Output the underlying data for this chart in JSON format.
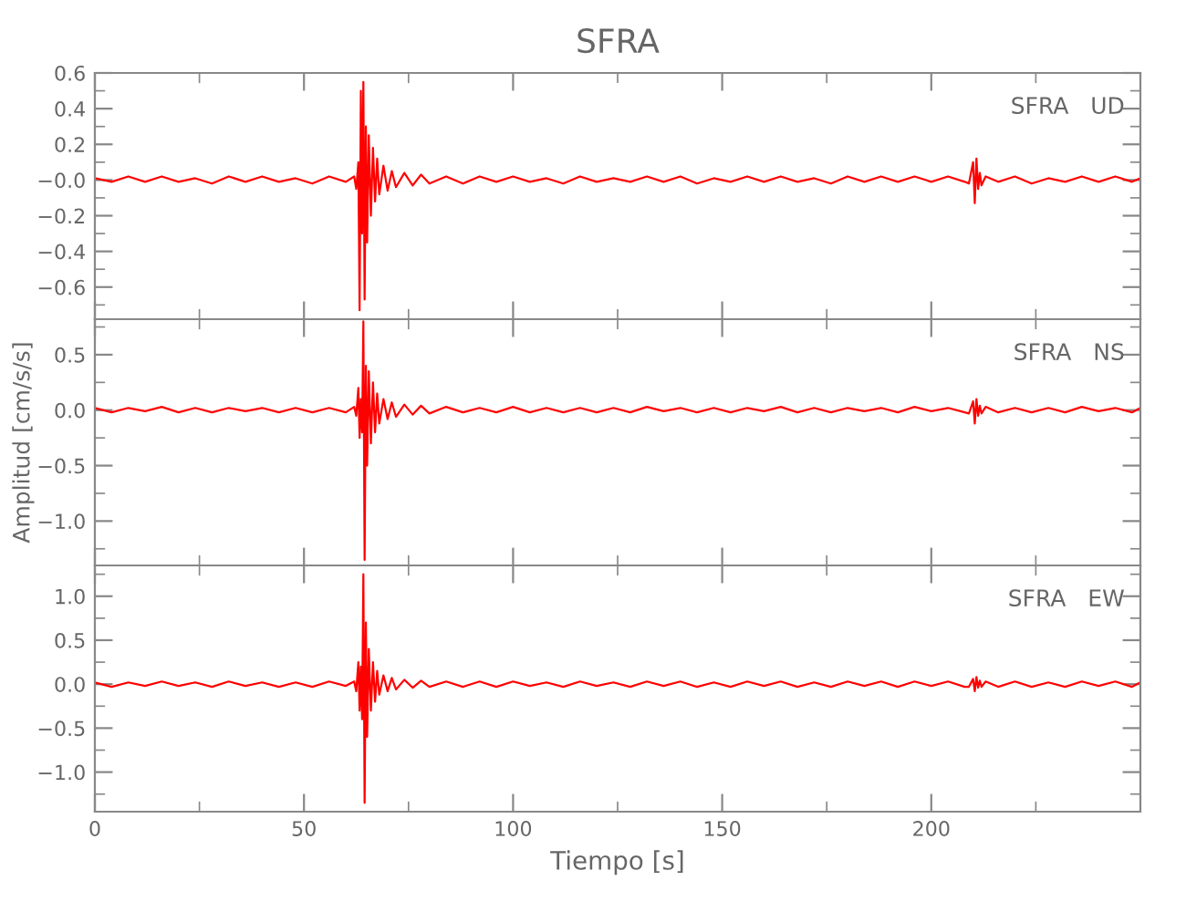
{
  "chart_data": [
    {
      "type": "line",
      "title": "SFRA",
      "annotations": [
        "SFRA   UD"
      ],
      "xlim": [
        0,
        250
      ],
      "xticks": [
        0,
        50,
        100,
        150,
        200
      ],
      "ylim": [
        -0.78,
        0.6
      ],
      "yticks": [
        0.6,
        0.4,
        0.2,
        {
          "value": 0,
          "label": "−0.0"
        },
        -0.2,
        -0.4,
        -0.6
      ],
      "tick_labels": "y",
      "grid": false,
      "legend": false,
      "series": [
        {
          "color": "#ff0000",
          "x": [
            0,
            4,
            8,
            12,
            16,
            20,
            24,
            28,
            32,
            36,
            40,
            44,
            48,
            52,
            56,
            60,
            62,
            62.5,
            63,
            63.3,
            63.6,
            63.9,
            64.2,
            64.5,
            64.8,
            65.1,
            65.5,
            66,
            66.5,
            67,
            67.5,
            68,
            69,
            70,
            71,
            72,
            74,
            76,
            78,
            80,
            84,
            88,
            92,
            96,
            100,
            104,
            108,
            112,
            116,
            120,
            124,
            128,
            132,
            136,
            140,
            144,
            148,
            152,
            156,
            160,
            164,
            168,
            172,
            176,
            180,
            184,
            188,
            192,
            196,
            200,
            204,
            208,
            209,
            210,
            210.4,
            210.8,
            211.2,
            211.6,
            212,
            213,
            216,
            220,
            224,
            228,
            232,
            236,
            240,
            244,
            248,
            250
          ],
          "values": [
            0.01,
            -0.01,
            0.02,
            -0.01,
            0.02,
            -0.01,
            0.01,
            -0.02,
            0.02,
            -0.01,
            0.02,
            -0.01,
            0.01,
            -0.02,
            0.02,
            -0.01,
            0.02,
            -0.05,
            0.1,
            -0.73,
            0.5,
            -0.3,
            0.55,
            -0.67,
            0.3,
            -0.35,
            0.25,
            -0.2,
            0.18,
            -0.12,
            0.12,
            -0.08,
            0.08,
            -0.06,
            0.05,
            -0.04,
            0.04,
            -0.03,
            0.03,
            -0.02,
            0.02,
            -0.02,
            0.02,
            -0.01,
            0.02,
            -0.01,
            0.01,
            -0.02,
            0.02,
            -0.01,
            0.01,
            -0.01,
            0.02,
            -0.01,
            0.02,
            -0.02,
            0.01,
            -0.01,
            0.02,
            -0.01,
            0.02,
            -0.01,
            0.01,
            -0.02,
            0.02,
            -0.01,
            0.02,
            -0.01,
            0.02,
            -0.01,
            0.02,
            -0.01,
            -0.02,
            0.1,
            -0.13,
            0.12,
            -0.05,
            0.04,
            -0.03,
            0.02,
            -0.01,
            0.02,
            -0.02,
            0.01,
            -0.01,
            0.02,
            -0.01,
            0.02,
            -0.01,
            0.01
          ]
        }
      ]
    },
    {
      "type": "line",
      "ylabel": "Amplitud [cm/s/s]",
      "annotations": [
        "SFRA   NS"
      ],
      "xlim": [
        0,
        250
      ],
      "xticks": [
        0,
        50,
        100,
        150,
        200
      ],
      "ylim": [
        -1.4,
        0.82
      ],
      "yticks": [
        0.5,
        {
          "value": 0,
          "label": "0.0"
        },
        -0.5,
        {
          "value": -1,
          "label": "−1.0"
        }
      ],
      "tick_labels": "y",
      "grid": false,
      "legend": false,
      "series": [
        {
          "color": "#ff0000",
          "x": [
            0,
            4,
            8,
            12,
            16,
            20,
            24,
            28,
            32,
            36,
            40,
            44,
            48,
            52,
            56,
            60,
            62,
            62.5,
            63,
            63.3,
            63.6,
            63.9,
            64.2,
            64.5,
            64.8,
            65.1,
            65.5,
            66,
            66.5,
            67,
            67.5,
            68,
            69,
            70,
            71,
            72,
            74,
            76,
            78,
            80,
            84,
            88,
            92,
            96,
            100,
            104,
            108,
            112,
            116,
            120,
            124,
            128,
            132,
            136,
            140,
            144,
            148,
            152,
            156,
            160,
            164,
            168,
            172,
            176,
            180,
            184,
            188,
            192,
            196,
            200,
            204,
            208,
            209,
            210,
            210.4,
            210.8,
            211.2,
            211.6,
            212,
            213,
            216,
            220,
            224,
            228,
            232,
            236,
            240,
            244,
            248,
            250
          ],
          "values": [
            0.02,
            -0.02,
            0.02,
            -0.01,
            0.03,
            -0.02,
            0.02,
            -0.02,
            0.02,
            -0.01,
            0.02,
            -0.02,
            0.02,
            -0.02,
            0.02,
            -0.02,
            0.03,
            -0.05,
            0.2,
            -0.25,
            0.1,
            -0.2,
            0.8,
            -1.35,
            0.4,
            -0.5,
            0.35,
            -0.3,
            0.25,
            -0.2,
            0.15,
            -0.12,
            0.1,
            -0.08,
            0.07,
            -0.06,
            0.05,
            -0.04,
            0.04,
            -0.03,
            0.03,
            -0.02,
            0.02,
            -0.02,
            0.03,
            -0.02,
            0.02,
            -0.02,
            0.02,
            -0.02,
            0.02,
            -0.02,
            0.03,
            -0.01,
            0.02,
            -0.02,
            0.02,
            -0.02,
            0.02,
            -0.01,
            0.03,
            -0.02,
            0.02,
            -0.02,
            0.02,
            -0.01,
            0.02,
            -0.02,
            0.03,
            -0.01,
            0.02,
            -0.02,
            -0.03,
            0.08,
            -0.12,
            0.1,
            -0.05,
            0.04,
            -0.03,
            0.03,
            -0.02,
            0.02,
            -0.02,
            0.02,
            -0.02,
            0.03,
            -0.01,
            0.02,
            -0.02,
            0.02
          ]
        }
      ]
    },
    {
      "type": "line",
      "xlabel": "Tiempo [s]",
      "xlim": [
        0,
        250
      ],
      "xticks": [
        0,
        50,
        100,
        150,
        200
      ],
      "ylim": [
        -1.45,
        1.35
      ],
      "yticks": [
        {
          "value": 1,
          "label": "1.0"
        },
        0.5,
        {
          "value": 0,
          "label": "0.0"
        },
        -0.5,
        {
          "value": -1,
          "label": "−1.0"
        }
      ],
      "grid": false,
      "legend": false,
      "annotations": [
        "SFRA   EW"
      ],
      "series": [
        {
          "color": "#ff0000",
          "x": [
            0,
            4,
            8,
            12,
            16,
            20,
            24,
            28,
            32,
            36,
            40,
            44,
            48,
            52,
            56,
            60,
            62,
            62.5,
            63,
            63.3,
            63.6,
            63.9,
            64.2,
            64.5,
            64.8,
            65.1,
            65.5,
            66,
            66.5,
            67,
            67.5,
            68,
            69,
            70,
            71,
            72,
            74,
            76,
            78,
            80,
            84,
            88,
            92,
            96,
            100,
            104,
            108,
            112,
            116,
            120,
            124,
            128,
            132,
            136,
            140,
            144,
            148,
            152,
            156,
            160,
            164,
            168,
            172,
            176,
            180,
            184,
            188,
            192,
            196,
            200,
            204,
            208,
            209,
            210,
            210.4,
            210.8,
            211.2,
            211.6,
            212,
            213,
            216,
            220,
            224,
            228,
            232,
            236,
            240,
            244,
            248,
            250
          ],
          "values": [
            0.02,
            -0.03,
            0.02,
            -0.02,
            0.03,
            -0.02,
            0.02,
            -0.03,
            0.03,
            -0.02,
            0.02,
            -0.03,
            0.02,
            -0.03,
            0.03,
            -0.02,
            0.03,
            -0.08,
            0.25,
            -0.3,
            0.2,
            -0.4,
            1.25,
            -1.35,
            0.7,
            -0.6,
            0.4,
            -0.3,
            0.25,
            -0.2,
            0.15,
            -0.12,
            0.1,
            -0.08,
            0.07,
            -0.06,
            0.05,
            -0.04,
            0.04,
            -0.03,
            0.03,
            -0.03,
            0.03,
            -0.03,
            0.03,
            -0.02,
            0.02,
            -0.03,
            0.03,
            -0.02,
            0.02,
            -0.03,
            0.03,
            -0.02,
            0.03,
            -0.03,
            0.02,
            -0.03,
            0.03,
            -0.02,
            0.03,
            -0.03,
            0.02,
            -0.03,
            0.03,
            -0.02,
            0.03,
            -0.03,
            0.03,
            -0.02,
            0.03,
            -0.03,
            -0.03,
            0.06,
            -0.08,
            0.08,
            -0.04,
            0.04,
            -0.03,
            0.03,
            -0.03,
            0.03,
            -0.03,
            0.02,
            -0.03,
            0.03,
            -0.02,
            0.03,
            -0.03,
            0.02
          ]
        }
      ]
    }
  ]
}
